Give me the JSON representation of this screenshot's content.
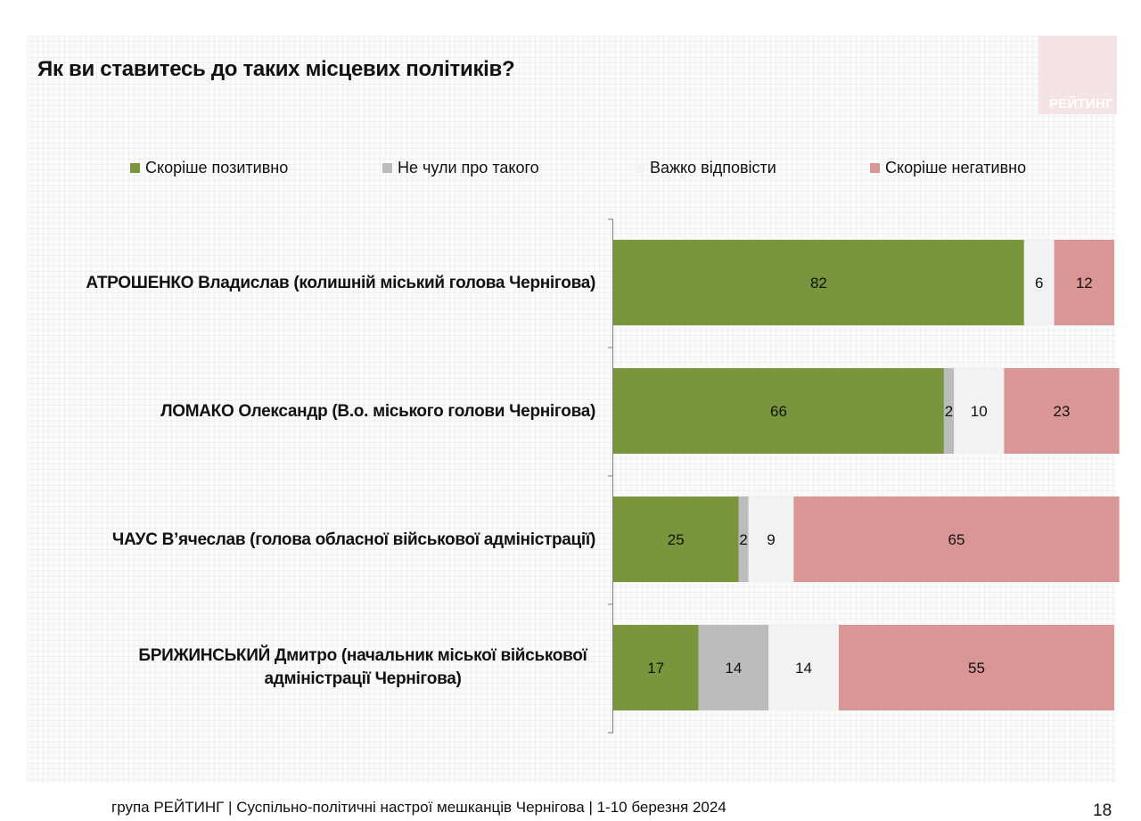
{
  "title": "Як ви ставитесь до таких місцевих політиків?",
  "logo": {
    "text": "РЕЙТИНГ"
  },
  "footer": {
    "text": "група РЕЙТИНГ  | Суспільно-політичні  настрої мешканців Чернігова | 1-10 березня 2024",
    "page_number": "18"
  },
  "colors": {
    "positive": "#7a963c",
    "not_heard": "#bcbcbc",
    "hard_to_say": "#f2f2f2",
    "negative": "#d99694",
    "axis": "#7f7f7f",
    "background": "#fbfbfb"
  },
  "chart_data": {
    "type": "bar",
    "orientation": "horizontal",
    "stacked": true,
    "unit": "%",
    "xlim": [
      0,
      100
    ],
    "legend_position": "top",
    "categories": [
      "АТРОШЕНКО Владислав (колишній міський голова Чернігова)",
      "ЛОМАКО Олександр (В.о. міського голови Чернігова)",
      "ЧАУС В’ячеслав (голова обласної військової адміністрації)",
      "БРИЖИНСЬКИЙ Дмитро (начальник міської військової адміністрації Чернігова)"
    ],
    "category_lines": [
      [
        "АТРОШЕНКО Владислав (колишній міський голова Чернігова)"
      ],
      [
        "ЛОМАКО Олександр (В.о. міського голови Чернігова)"
      ],
      [
        "ЧАУС В’ячеслав (голова обласної військової адміністрації)"
      ],
      [
        "БРИЖИНСЬКИЙ Дмитро (начальник міської військової",
        "адміністрації Чернігова)"
      ]
    ],
    "series": [
      {
        "key": "positive",
        "name": "Скоріше позитивно",
        "values": [
          82,
          66,
          25,
          17
        ]
      },
      {
        "key": "not_heard",
        "name": "Не чули про такого",
        "values": [
          0,
          2,
          2,
          14
        ]
      },
      {
        "key": "hard_to_say",
        "name": "Важко відповісти",
        "values": [
          6,
          10,
          9,
          14
        ]
      },
      {
        "key": "negative",
        "name": "Скоріше негативно",
        "values": [
          12,
          23,
          65,
          55
        ]
      }
    ]
  }
}
